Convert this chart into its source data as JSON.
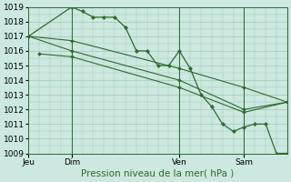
{
  "xlabel": "Pression niveau de la mer( hPa )",
  "ylim": [
    1009,
    1019
  ],
  "yticks": [
    1009,
    1010,
    1011,
    1012,
    1013,
    1014,
    1015,
    1016,
    1017,
    1018,
    1019
  ],
  "background_color": "#cce8e0",
  "grid_color": "#a0c8b4",
  "line_color": "#2d6a2d",
  "day_labels": [
    "Jeu",
    "Dim",
    "Ven",
    "Sam"
  ],
  "day_positions": [
    0.0,
    0.167,
    0.583,
    0.833
  ],
  "vlines_x": [
    0.167,
    0.583,
    0.833
  ],
  "zigzag": {
    "x": [
      0.0,
      0.167,
      0.208,
      0.25,
      0.292,
      0.333,
      0.375,
      0.417,
      0.458,
      0.5,
      0.542,
      0.583,
      0.625,
      0.667,
      0.708,
      0.75,
      0.792,
      0.833,
      0.875,
      0.917,
      0.958,
      1.0
    ],
    "y": [
      1017.0,
      1019.0,
      1018.7,
      1018.3,
      1018.3,
      1018.3,
      1017.6,
      1016.0,
      1016.0,
      1015.0,
      1015.0,
      1016.0,
      1014.8,
      1013.0,
      1012.2,
      1011.0,
      1010.5,
      1010.8,
      1011.0,
      1011.0,
      1009.0,
      1009.0
    ]
  },
  "trend1": {
    "x": [
      0.0,
      0.167,
      0.583,
      0.833,
      1.0
    ],
    "y": [
      1017.0,
      1016.7,
      1014.8,
      1013.5,
      1012.5
    ]
  },
  "trend2": {
    "x": [
      0.0,
      0.167,
      0.583,
      0.833,
      1.0
    ],
    "y": [
      1017.0,
      1016.0,
      1014.0,
      1012.0,
      1012.5
    ]
  },
  "trend3": {
    "x": [
      0.04,
      0.167,
      0.583,
      0.833,
      1.0
    ],
    "y": [
      1015.8,
      1015.6,
      1013.5,
      1011.8,
      1012.5
    ]
  }
}
